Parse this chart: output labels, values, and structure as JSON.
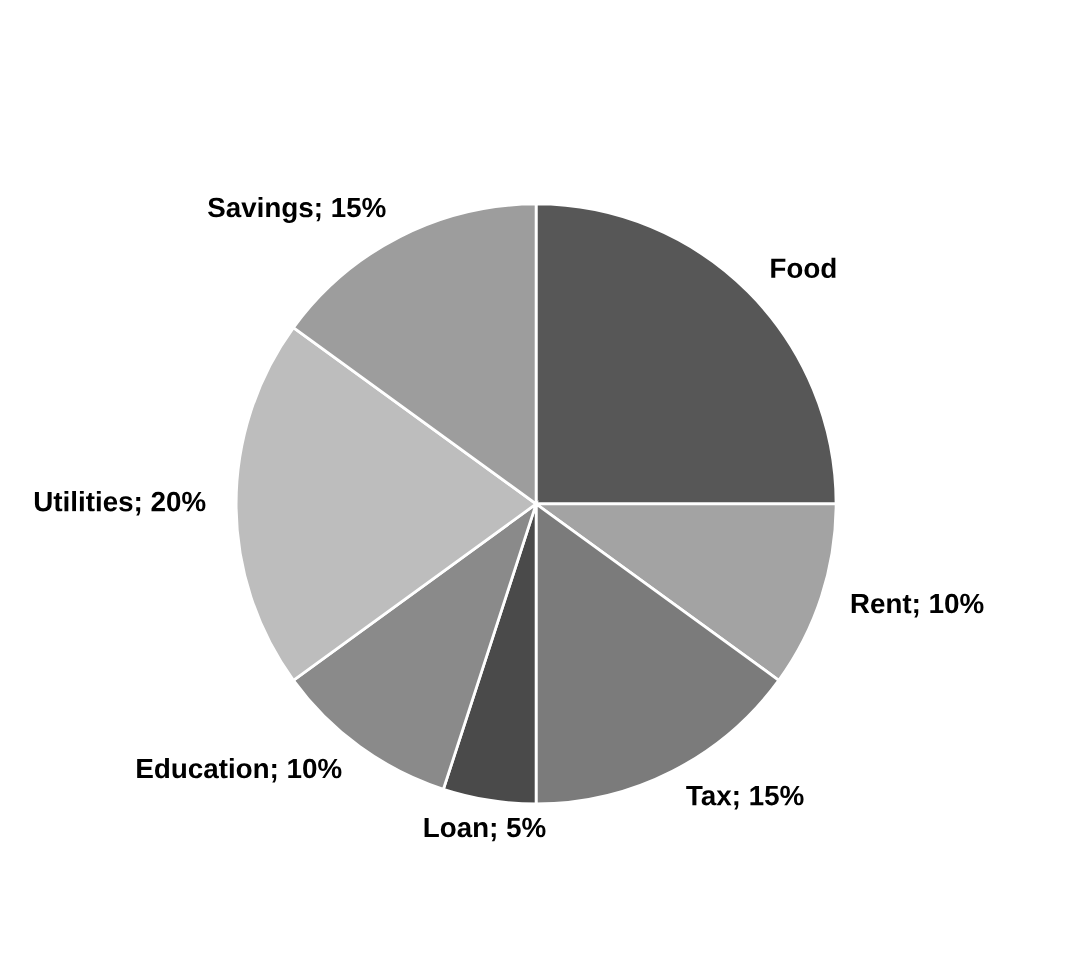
{
  "chart_data": {
    "type": "pie",
    "categories": [
      "Food",
      "Rent",
      "Tax",
      "Loan",
      "Education",
      "Utilities",
      "Savings"
    ],
    "values": [
      25,
      10,
      15,
      5,
      10,
      20,
      15
    ],
    "value_labels": [
      null,
      "10%",
      "15%",
      "5%",
      "10%",
      "20%",
      "15%"
    ],
    "colors": [
      "#575757",
      "#a3a3a3",
      "#7b7b7b",
      "#4a4a4a",
      "#8a8a8a",
      "#bdbdbd",
      "#9d9d9d"
    ],
    "legend": false
  }
}
